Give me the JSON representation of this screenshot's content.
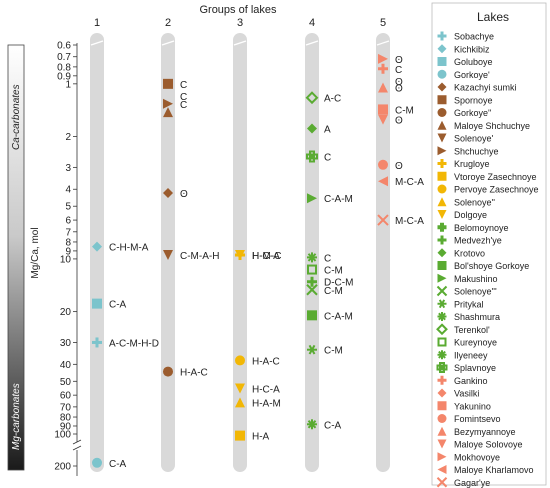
{
  "chart_data": {
    "type": "scatter",
    "title": "Groups of lakes",
    "ylabel": "Mg/Ca, mol",
    "yscale": "log",
    "ylim": [
      0.6,
      200
    ],
    "ylim_note": "y axis broken between 100 and 200",
    "categories": [
      "1",
      "2",
      "3",
      "4",
      "5"
    ],
    "yticks": [
      0.6,
      0.7,
      0.8,
      0.9,
      1,
      2,
      3,
      4,
      5,
      6,
      7,
      8,
      9,
      10,
      20,
      30,
      40,
      50,
      60,
      70,
      80,
      90,
      100,
      200
    ],
    "side_bar": {
      "top_label": "Ca-carbonates",
      "bottom_label": "Mg-carbonates"
    },
    "legend": {
      "title": "Lakes",
      "placement": "right",
      "entries": [
        {
          "name": "Sobachye",
          "marker": "plus",
          "color": "#7cc4cc"
        },
        {
          "name": "Kichkibiz",
          "marker": "diamond",
          "color": "#7cc4cc"
        },
        {
          "name": "Goluboye",
          "marker": "square",
          "color": "#7cc4cc"
        },
        {
          "name": "Gorkoye'",
          "marker": "circle",
          "color": "#7cc4cc"
        },
        {
          "name": "Kazachyi sumki",
          "marker": "diamond",
          "color": "#9b5c2e"
        },
        {
          "name": "Spornoye",
          "marker": "square",
          "color": "#9b5c2e"
        },
        {
          "name": "Gorkoye''",
          "marker": "circle",
          "color": "#9b5c2e"
        },
        {
          "name": "Maloye Shchuchye",
          "marker": "triangle-up",
          "color": "#9b5c2e"
        },
        {
          "name": "Solenoye'",
          "marker": "triangle-down",
          "color": "#9b5c2e"
        },
        {
          "name": "Shchuchye",
          "marker": "triangle-right",
          "color": "#9b5c2e"
        },
        {
          "name": "Krugloye",
          "marker": "plus",
          "color": "#f2b705"
        },
        {
          "name": "Vtoroye Zasechnoye",
          "marker": "square",
          "color": "#f2b705"
        },
        {
          "name": "Pervoye Zasechnoye",
          "marker": "circle",
          "color": "#f2b705"
        },
        {
          "name": "Solenoye''",
          "marker": "triangle-up",
          "color": "#f2b705"
        },
        {
          "name": "Dolgoye",
          "marker": "triangle-down",
          "color": "#f2b705"
        },
        {
          "name": "Belomoynoye",
          "marker": "plus-fancy",
          "color": "#5aab32"
        },
        {
          "name": "Medvezh'ye",
          "marker": "plus",
          "color": "#5aab32"
        },
        {
          "name": "Krotovo",
          "marker": "diamond",
          "color": "#5aab32"
        },
        {
          "name": "Bol'shoye Gorkoye",
          "marker": "square",
          "color": "#5aab32"
        },
        {
          "name": "Makushino",
          "marker": "triangle-right",
          "color": "#5aab32"
        },
        {
          "name": "Solenoye'''",
          "marker": "x",
          "color": "#5aab32"
        },
        {
          "name": "Pritykal",
          "marker": "asterisk",
          "color": "#5aab32"
        },
        {
          "name": "Shashmura",
          "marker": "star",
          "color": "#5aab32"
        },
        {
          "name": "Terenkol'",
          "marker": "diamond-open",
          "color": "#5aab32"
        },
        {
          "name": "Kureynoye",
          "marker": "square-open",
          "color": "#5aab32"
        },
        {
          "name": "Ilyeneey",
          "marker": "star-open",
          "color": "#5aab32"
        },
        {
          "name": "Splavnoye",
          "marker": "plus-open",
          "color": "#5aab32"
        },
        {
          "name": "Gankino",
          "marker": "plus",
          "color": "#f4866b"
        },
        {
          "name": "Vasilki",
          "marker": "diamond",
          "color": "#f4866b"
        },
        {
          "name": "Yakunino",
          "marker": "square",
          "color": "#f4866b"
        },
        {
          "name": "Fomintsevo",
          "marker": "circle",
          "color": "#f4866b"
        },
        {
          "name": "Bezymyannoye",
          "marker": "triangle-up",
          "color": "#f4866b"
        },
        {
          "name": "Maloye Solovoye",
          "marker": "triangle-down",
          "color": "#f4866b"
        },
        {
          "name": "Mokhovoye",
          "marker": "triangle-right",
          "color": "#f4866b"
        },
        {
          "name": "Maloye Kharlamovo",
          "marker": "triangle-left",
          "color": "#f4866b"
        },
        {
          "name": "Gagar'ye",
          "marker": "x",
          "color": "#f4866b"
        }
      ]
    },
    "points": [
      {
        "group": 1,
        "lake": "Kichkibiz",
        "y": 8.5,
        "label": "C-H-M-A"
      },
      {
        "group": 1,
        "lake": "Goluboye",
        "y": 18,
        "label": "C-A"
      },
      {
        "group": 1,
        "lake": "Sobachye",
        "y": 30,
        "label": "A-C-M-H-D"
      },
      {
        "group": 1,
        "lake": "Gorkoye'",
        "y": 190,
        "label": "C-A"
      },
      {
        "group": 2,
        "lake": "Spornoye",
        "y": 1.0,
        "label": "C"
      },
      {
        "group": 2,
        "lake": "",
        "y": 1.0,
        "label": "C",
        "label_row": 1
      },
      {
        "group": 2,
        "lake": "Shchuchye",
        "y": 1.3,
        "label": "C"
      },
      {
        "group": 2,
        "lake": "Maloye Shchuchye",
        "y": 1.45,
        "label": ""
      },
      {
        "group": 2,
        "lake": "Kazachyi sumki",
        "y": 4.2,
        "label": "ʘ"
      },
      {
        "group": 2,
        "lake": "Solenoye'",
        "y": 9.5,
        "label": "C-M-A-H"
      },
      {
        "group": 2,
        "lake": "Gorkoye''",
        "y": 44,
        "label": "H-A-C"
      },
      {
        "group": 3,
        "lake": "Krugloye",
        "y": 9.5,
        "label": "H-C-A"
      },
      {
        "group": 3,
        "lake": "Dolgoye",
        "y": 9.5,
        "label": "H-M-C"
      },
      {
        "group": 3,
        "lake": "Pervoye Zasechnoye",
        "y": 38,
        "label": "H-A-C"
      },
      {
        "group": 3,
        "lake": "Dolgoye",
        "y": 55,
        "label": "H-C-A"
      },
      {
        "group": 3,
        "lake": "Solenoye''",
        "y": 66,
        "label": "H-A-M"
      },
      {
        "group": 3,
        "lake": "Vtoroye Zasechnoye",
        "y": 105,
        "label": "H-A"
      },
      {
        "group": 4,
        "lake": "Terenkol'",
        "y": 1.2,
        "label": "A-C"
      },
      {
        "group": 4,
        "lake": "Krotovo",
        "y": 1.8,
        "label": "A"
      },
      {
        "group": 4,
        "lake": "Splavnoye",
        "y": 2.6,
        "label": "C"
      },
      {
        "group": 4,
        "lake": "Makushino",
        "y": 4.5,
        "label": "C-A-M"
      },
      {
        "group": 4,
        "lake": "Ilyeneey",
        "y": 9.8,
        "label": "C"
      },
      {
        "group": 4,
        "lake": "Kureynoye",
        "y": 11.5,
        "label": "C-M"
      },
      {
        "group": 4,
        "lake": "Medvezh'ye",
        "y": 13.5,
        "label": "D-C-M"
      },
      {
        "group": 4,
        "lake": "Solenoye'''",
        "y": 15,
        "label": "C-M"
      },
      {
        "group": 4,
        "lake": "Bol'shoye Gorkoye",
        "y": 21,
        "label": "C-A-M"
      },
      {
        "group": 4,
        "lake": "Pritykal",
        "y": 33,
        "label": "C-M"
      },
      {
        "group": 4,
        "lake": "Shashmura",
        "y": 88,
        "label": "C-A"
      },
      {
        "group": 5,
        "lake": "Mokhovoye",
        "y": 0.72,
        "label": "ʘ"
      },
      {
        "group": 5,
        "lake": "Gankino",
        "y": 0.82,
        "label": "C"
      },
      {
        "group": 5,
        "lake": "",
        "y": 0.82,
        "label": "ʘ",
        "label_row": 1
      },
      {
        "group": 5,
        "lake": "Bezymyannoye",
        "y": 1.05,
        "label": "ʘ"
      },
      {
        "group": 5,
        "lake": "Yakunino",
        "y": 1.4,
        "label": "C-M"
      },
      {
        "group": 5,
        "lake": "Maloye Solovoye",
        "y": 1.6,
        "label": "ʘ"
      },
      {
        "group": 5,
        "lake": "Fomintsevo",
        "y": 2.9,
        "label": "ʘ"
      },
      {
        "group": 5,
        "lake": "Maloye Kharlamovo",
        "y": 3.6,
        "label": "M-C-A"
      },
      {
        "group": 5,
        "lake": "Gagar'ye",
        "y": 6.0,
        "label": "M-C-A"
      }
    ]
  }
}
